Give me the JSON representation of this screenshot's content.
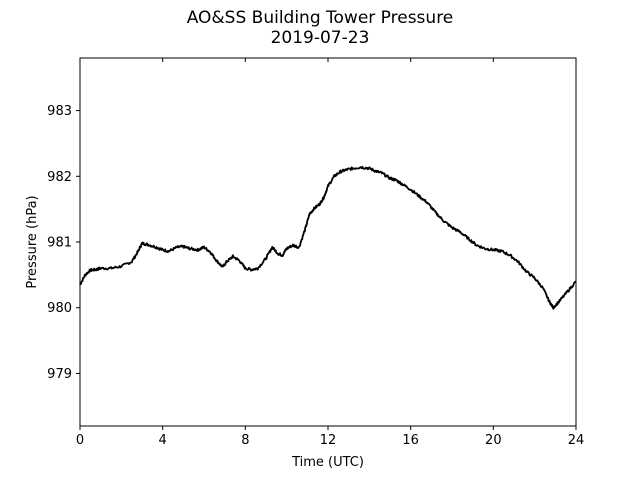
{
  "chart_data": {
    "type": "line",
    "title": "AO&SS Building Tower Pressure",
    "subtitle": "2019-07-23",
    "xlabel": "Time (UTC)",
    "ylabel": "Pressure (hPa)",
    "xlim": [
      0,
      24
    ],
    "ylim": [
      978.2,
      983.8
    ],
    "xticks": [
      0,
      4,
      8,
      12,
      16,
      20,
      24
    ],
    "yticks": [
      979,
      980,
      981,
      982,
      983
    ],
    "grid": false,
    "series_color": "#000000",
    "series": [
      {
        "x": [
          0,
          0.25,
          0.5,
          0.75,
          1.0,
          1.5,
          2.0,
          2.5,
          2.8,
          3.0,
          3.3,
          3.7,
          4.0,
          4.3,
          4.7,
          5.0,
          5.3,
          5.7,
          6.0,
          6.3,
          6.6,
          6.9,
          7.1,
          7.4,
          7.7,
          8.0,
          8.3,
          8.6,
          9.0,
          9.3,
          9.6,
          9.8,
          10.0,
          10.3,
          10.6,
          10.9,
          11.1,
          11.3,
          11.6,
          11.8,
          12.0,
          12.3,
          12.6,
          12.9,
          13.2,
          13.6,
          14.0,
          14.3,
          14.6,
          15.0,
          15.3,
          15.6,
          16.0,
          16.4,
          16.8,
          17.2,
          17.6,
          18.0,
          18.4,
          18.8,
          19.2,
          19.6,
          20.0,
          20.4,
          20.8,
          21.2,
          21.6,
          22.0,
          22.4,
          22.7,
          22.9,
          23.2,
          23.6,
          24.0
        ],
        "y": [
          980.35,
          980.5,
          980.57,
          980.58,
          980.6,
          980.6,
          980.63,
          980.7,
          980.85,
          980.98,
          980.96,
          980.92,
          980.88,
          980.86,
          980.92,
          980.93,
          980.9,
          980.88,
          980.92,
          980.85,
          980.72,
          980.62,
          980.7,
          980.78,
          980.72,
          980.6,
          980.58,
          980.6,
          980.75,
          980.92,
          980.82,
          980.8,
          980.9,
          980.95,
          980.92,
          981.2,
          981.42,
          981.5,
          981.58,
          981.68,
          981.85,
          982.0,
          982.07,
          982.1,
          982.12,
          982.14,
          982.12,
          982.08,
          982.05,
          981.97,
          981.94,
          981.88,
          981.8,
          981.7,
          981.6,
          981.45,
          981.32,
          981.22,
          981.15,
          981.05,
          980.95,
          980.9,
          980.88,
          980.86,
          980.8,
          980.7,
          980.55,
          980.45,
          980.3,
          980.1,
          980.0,
          980.1,
          980.25,
          980.4
        ]
      }
    ]
  }
}
